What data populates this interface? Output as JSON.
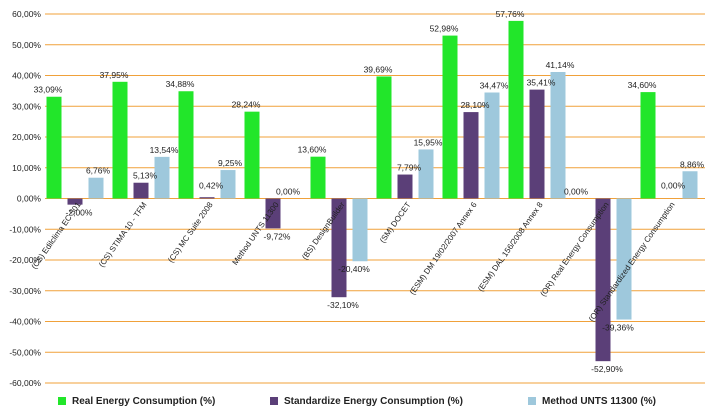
{
  "chart_data": {
    "type": "bar",
    "ylim": [
      -60,
      60
    ],
    "ytick_step": 10,
    "y_tick_labels": [
      "-60,00%",
      "-50,00%",
      "-40,00%",
      "-30,00%",
      "-20,00%",
      "-10,00%",
      "0,00%",
      "10,00%",
      "20,00%",
      "30,00%",
      "40,00%",
      "50,00%",
      "60,00%"
    ],
    "grid": true,
    "grid_color": "#f0a13a",
    "legend_position": "bottom",
    "categories": [
      "(CS) Edilclima EC 501",
      "(CS) STIMA 10 - TFM",
      "(CS) MC Suite 2008",
      "Method UNTS 11300",
      "(BS) DesignBuilder",
      "(SM) DOCET",
      "(ESM) DM 19/02/2007 Annex 6",
      "(ESM) DAL 156/2008 Annex 8",
      "(OR) Real Energy Consumption",
      "(OR) Standardized Energy Consumption"
    ],
    "series": [
      {
        "name": "Real Energy Consumption (%)",
        "color": "#22e62a",
        "values": [
          33.09,
          37.95,
          34.88,
          28.24,
          13.6,
          39.69,
          52.98,
          57.76,
          0.0,
          34.6
        ],
        "labels": [
          "33,09%",
          "37,95%",
          "34,88%",
          "28,24%",
          "13,60%",
          "39,69%",
          "52,98%",
          "57,76%",
          "0,00%",
          "34,60%"
        ]
      },
      {
        "name": "Standardize Energy Consumption (%)",
        "color": "#5b3f78",
        "values": [
          -2.0,
          5.13,
          0.42,
          -9.72,
          -32.1,
          7.79,
          28.1,
          35.41,
          -52.9,
          0.0
        ],
        "labels": [
          "-2,00%",
          "5,13%",
          "0,42%",
          "-9,72%",
          "-32,10%",
          "7,79%",
          "28,10%",
          "35,41%",
          "-52,90%",
          "0,00%"
        ]
      },
      {
        "name": "Method UNTS 11300 (%)",
        "color": "#9ec8dc",
        "values": [
          6.76,
          13.54,
          9.25,
          0.0,
          -20.4,
          15.95,
          34.47,
          41.14,
          -39.36,
          8.86
        ],
        "labels": [
          "6,76%",
          "13,54%",
          "9,25%",
          "0,00%",
          "-20,40%",
          "15,95%",
          "34,47%",
          "41,14%",
          "-39,36%",
          "8,86%"
        ]
      }
    ]
  }
}
